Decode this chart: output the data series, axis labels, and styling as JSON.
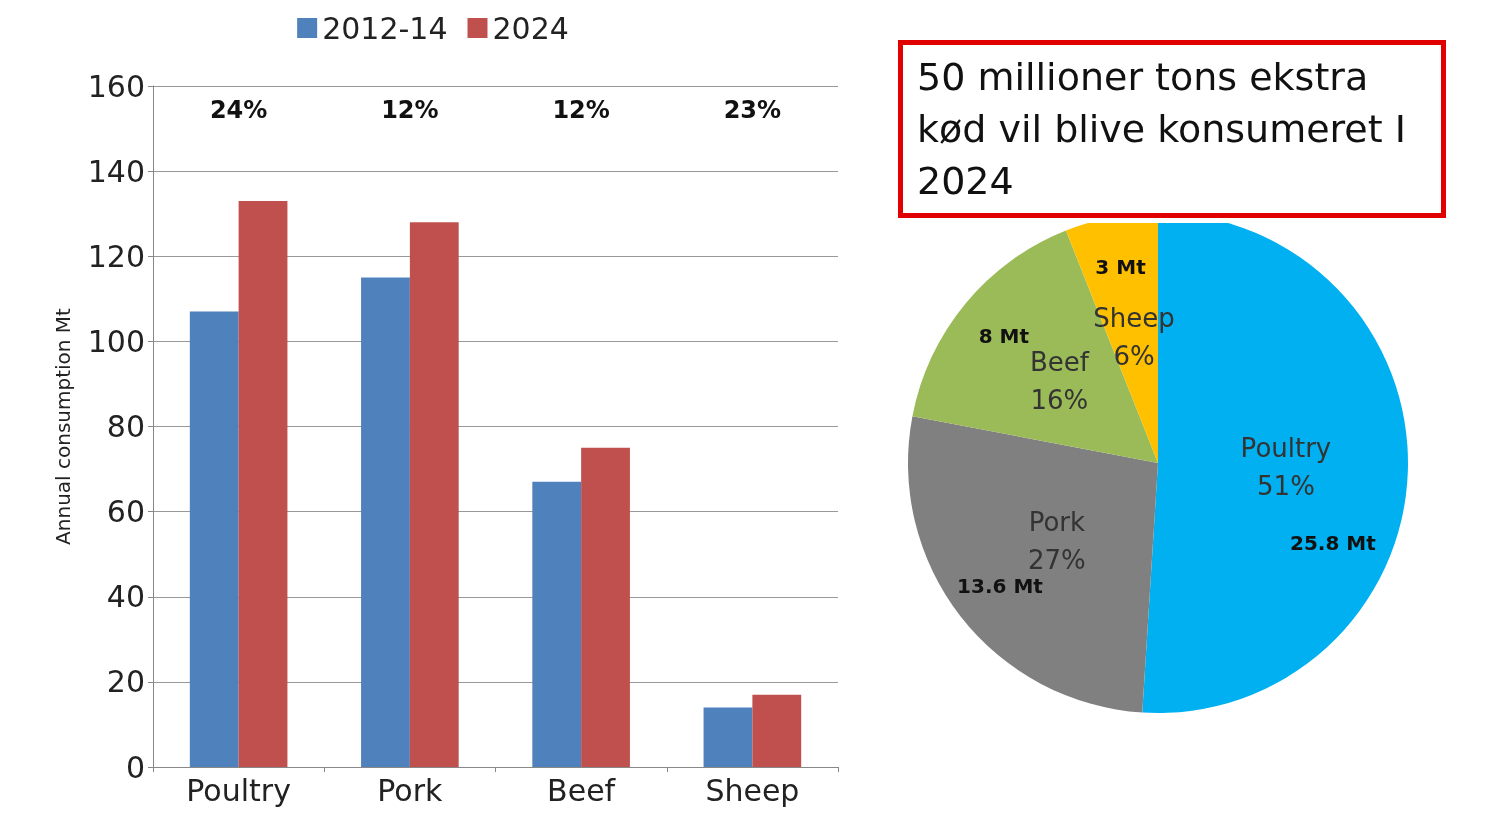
{
  "chart_data": [
    {
      "type": "bar",
      "ylabel": "Annual consumption Mt",
      "categories": [
        "Poultry",
        "Pork",
        "Beef",
        "Sheep"
      ],
      "series": [
        {
          "name": "2012-14",
          "color": "#4f81bd",
          "values": [
            107,
            115,
            67,
            14
          ]
        },
        {
          "name": "2024",
          "color": "#c0504d",
          "values": [
            133,
            128,
            75,
            17
          ]
        }
      ],
      "ylim": [
        0,
        160
      ],
      "yticks": [
        0,
        20,
        40,
        60,
        80,
        100,
        120,
        140,
        160
      ],
      "grid": "y",
      "legend": "top",
      "annotations": [
        "24%",
        "12%",
        "12%",
        "23%"
      ]
    },
    {
      "type": "pie",
      "title": "50 millioner tons ekstra kød vil blive konsumeret I 2024",
      "categories": [
        "Poultry",
        "Pork",
        "Beef",
        "Sheep"
      ],
      "values": [
        51,
        27,
        16,
        6
      ],
      "colors": [
        "#00b0f0",
        "#808080",
        "#9bbb59",
        "#ffc000"
      ],
      "value_labels": [
        "51%",
        "27%",
        "16%",
        "6%"
      ],
      "annotations": [
        {
          "text": "25.8 Mt",
          "x": "Poultry"
        },
        {
          "text": "13.6 Mt",
          "x": "Pork"
        },
        {
          "text": "8 Mt",
          "x": "Beef"
        },
        {
          "text": "3 Mt",
          "x": "Sheep"
        }
      ]
    }
  ]
}
